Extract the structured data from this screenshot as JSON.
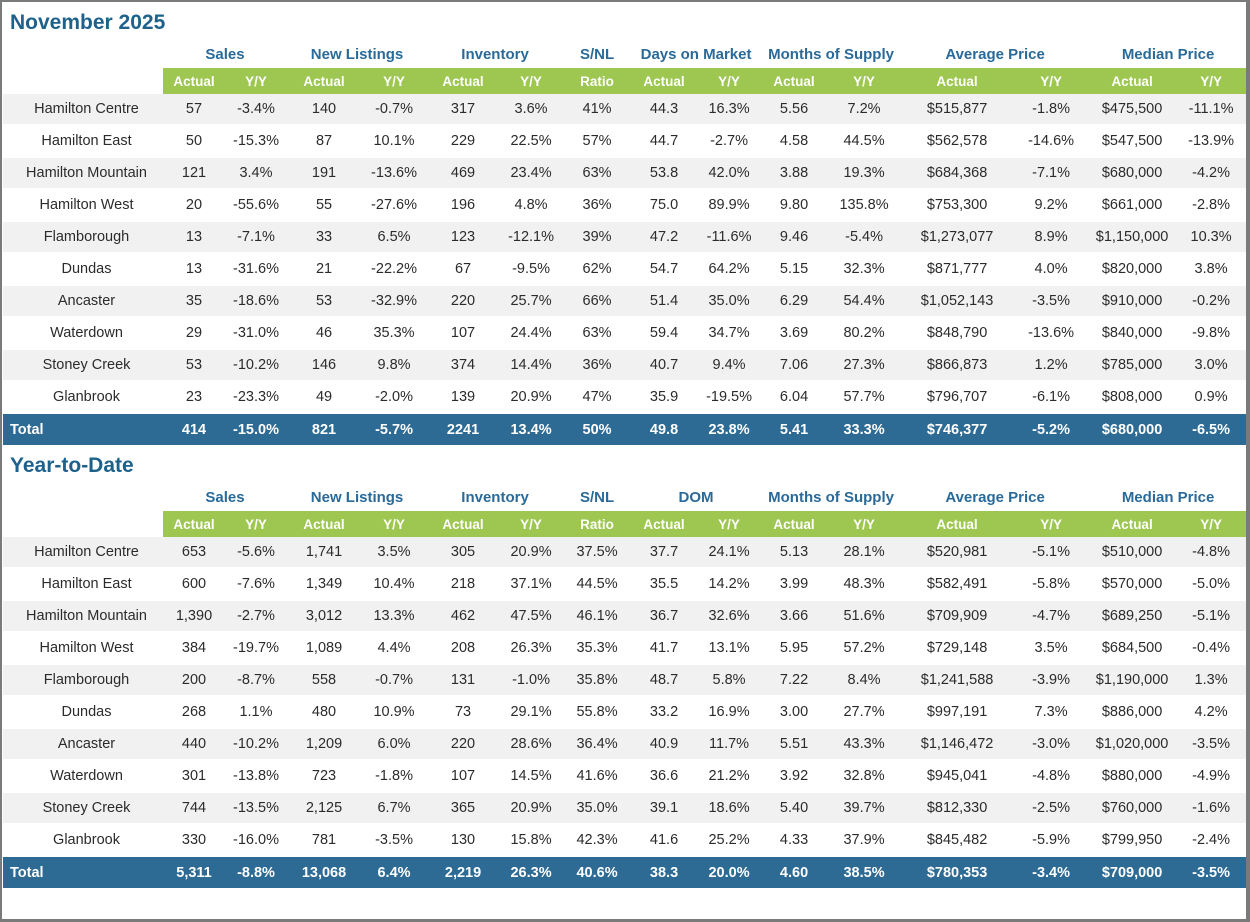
{
  "page": {
    "accent_green": "#9dc750",
    "header_blue": "#2a6a99",
    "title_blue": "#1e628c",
    "total_row_bg": "#2d6b94",
    "stripe_gray": "#f1f1f1"
  },
  "sections": [
    {
      "title": "November 2025",
      "groups": [
        {
          "label": "Sales",
          "span": 2
        },
        {
          "label": "New Listings",
          "span": 2
        },
        {
          "label": "Inventory",
          "span": 2
        },
        {
          "label": "S/NL",
          "span": 1
        },
        {
          "label": "Days on Market",
          "span": 2
        },
        {
          "label": "Months of Supply",
          "span": 2
        },
        {
          "label": "Average Price",
          "span": 2
        },
        {
          "label": "Median Price",
          "span": 2
        }
      ],
      "subheaders": [
        "Actual",
        "Y/Y",
        "Actual",
        "Y/Y",
        "Actual",
        "Y/Y",
        "Ratio",
        "Actual",
        "Y/Y",
        "Actual",
        "Y/Y",
        "Actual",
        "Y/Y",
        "Actual",
        "Y/Y"
      ],
      "rows": [
        {
          "region": "Hamilton Centre",
          "values": [
            "57",
            "-3.4%",
            "140",
            "-0.7%",
            "317",
            "3.6%",
            "41%",
            "44.3",
            "16.3%",
            "5.56",
            "7.2%",
            "$515,877",
            "-1.8%",
            "$475,500",
            "-11.1%"
          ]
        },
        {
          "region": "Hamilton East",
          "values": [
            "50",
            "-15.3%",
            "87",
            "10.1%",
            "229",
            "22.5%",
            "57%",
            "44.7",
            "-2.7%",
            "4.58",
            "44.5%",
            "$562,578",
            "-14.6%",
            "$547,500",
            "-13.9%"
          ]
        },
        {
          "region": "Hamilton Mountain",
          "values": [
            "121",
            "3.4%",
            "191",
            "-13.6%",
            "469",
            "23.4%",
            "63%",
            "53.8",
            "42.0%",
            "3.88",
            "19.3%",
            "$684,368",
            "-7.1%",
            "$680,000",
            "-4.2%"
          ]
        },
        {
          "region": "Hamilton West",
          "values": [
            "20",
            "-55.6%",
            "55",
            "-27.6%",
            "196",
            "4.8%",
            "36%",
            "75.0",
            "89.9%",
            "9.80",
            "135.8%",
            "$753,300",
            "9.2%",
            "$661,000",
            "-2.8%"
          ]
        },
        {
          "region": "Flamborough",
          "values": [
            "13",
            "-7.1%",
            "33",
            "6.5%",
            "123",
            "-12.1%",
            "39%",
            "47.2",
            "-11.6%",
            "9.46",
            "-5.4%",
            "$1,273,077",
            "8.9%",
            "$1,150,000",
            "10.3%"
          ]
        },
        {
          "region": "Dundas",
          "values": [
            "13",
            "-31.6%",
            "21",
            "-22.2%",
            "67",
            "-9.5%",
            "62%",
            "54.7",
            "64.2%",
            "5.15",
            "32.3%",
            "$871,777",
            "4.0%",
            "$820,000",
            "3.8%"
          ]
        },
        {
          "region": "Ancaster",
          "values": [
            "35",
            "-18.6%",
            "53",
            "-32.9%",
            "220",
            "25.7%",
            "66%",
            "51.4",
            "35.0%",
            "6.29",
            "54.4%",
            "$1,052,143",
            "-3.5%",
            "$910,000",
            "-0.2%"
          ]
        },
        {
          "region": "Waterdown",
          "values": [
            "29",
            "-31.0%",
            "46",
            "35.3%",
            "107",
            "24.4%",
            "63%",
            "59.4",
            "34.7%",
            "3.69",
            "80.2%",
            "$848,790",
            "-13.6%",
            "$840,000",
            "-9.8%"
          ]
        },
        {
          "region": "Stoney Creek",
          "values": [
            "53",
            "-10.2%",
            "146",
            "9.8%",
            "374",
            "14.4%",
            "36%",
            "40.7",
            "9.4%",
            "7.06",
            "27.3%",
            "$866,873",
            "1.2%",
            "$785,000",
            "3.0%"
          ]
        },
        {
          "region": "Glanbrook",
          "values": [
            "23",
            "-23.3%",
            "49",
            "-2.0%",
            "139",
            "20.9%",
            "47%",
            "35.9",
            "-19.5%",
            "6.04",
            "57.7%",
            "$796,707",
            "-6.1%",
            "$808,000",
            "0.9%"
          ]
        }
      ],
      "total": {
        "region": "Total",
        "values": [
          "414",
          "-15.0%",
          "821",
          "-5.7%",
          "2241",
          "13.4%",
          "50%",
          "49.8",
          "23.8%",
          "5.41",
          "33.3%",
          "$746,377",
          "-5.2%",
          "$680,000",
          "-6.5%"
        ]
      }
    },
    {
      "title": "Year-to-Date",
      "groups": [
        {
          "label": "Sales",
          "span": 2
        },
        {
          "label": "New Listings",
          "span": 2
        },
        {
          "label": "Inventory",
          "span": 2
        },
        {
          "label": "S/NL",
          "span": 1
        },
        {
          "label": "DOM",
          "span": 2
        },
        {
          "label": "Months of Supply",
          "span": 2
        },
        {
          "label": "Average Price",
          "span": 2
        },
        {
          "label": "Median Price",
          "span": 2
        }
      ],
      "subheaders": [
        "Actual",
        "Y/Y",
        "Actual",
        "Y/Y",
        "Actual",
        "Y/Y",
        "Ratio",
        "Actual",
        "Y/Y",
        "Actual",
        "Y/Y",
        "Actual",
        "Y/Y",
        "Actual",
        "Y/Y"
      ],
      "rows": [
        {
          "region": "Hamilton Centre",
          "values": [
            "653",
            "-5.6%",
            "1,741",
            "3.5%",
            "305",
            "20.9%",
            "37.5%",
            "37.7",
            "24.1%",
            "5.13",
            "28.1%",
            "$520,981",
            "-5.1%",
            "$510,000",
            "-4.8%"
          ]
        },
        {
          "region": "Hamilton East",
          "values": [
            "600",
            "-7.6%",
            "1,349",
            "10.4%",
            "218",
            "37.1%",
            "44.5%",
            "35.5",
            "14.2%",
            "3.99",
            "48.3%",
            "$582,491",
            "-5.8%",
            "$570,000",
            "-5.0%"
          ]
        },
        {
          "region": "Hamilton Mountain",
          "values": [
            "1,390",
            "-2.7%",
            "3,012",
            "13.3%",
            "462",
            "47.5%",
            "46.1%",
            "36.7",
            "32.6%",
            "3.66",
            "51.6%",
            "$709,909",
            "-4.7%",
            "$689,250",
            "-5.1%"
          ]
        },
        {
          "region": "Hamilton West",
          "values": [
            "384",
            "-19.7%",
            "1,089",
            "4.4%",
            "208",
            "26.3%",
            "35.3%",
            "41.7",
            "13.1%",
            "5.95",
            "57.2%",
            "$729,148",
            "3.5%",
            "$684,500",
            "-0.4%"
          ]
        },
        {
          "region": "Flamborough",
          "values": [
            "200",
            "-8.7%",
            "558",
            "-0.7%",
            "131",
            "-1.0%",
            "35.8%",
            "48.7",
            "5.8%",
            "7.22",
            "8.4%",
            "$1,241,588",
            "-3.9%",
            "$1,190,000",
            "1.3%"
          ]
        },
        {
          "region": "Dundas",
          "values": [
            "268",
            "1.1%",
            "480",
            "10.9%",
            "73",
            "29.1%",
            "55.8%",
            "33.2",
            "16.9%",
            "3.00",
            "27.7%",
            "$997,191",
            "7.3%",
            "$886,000",
            "4.2%"
          ]
        },
        {
          "region": "Ancaster",
          "values": [
            "440",
            "-10.2%",
            "1,209",
            "6.0%",
            "220",
            "28.6%",
            "36.4%",
            "40.9",
            "11.7%",
            "5.51",
            "43.3%",
            "$1,146,472",
            "-3.0%",
            "$1,020,000",
            "-3.5%"
          ]
        },
        {
          "region": "Waterdown",
          "values": [
            "301",
            "-13.8%",
            "723",
            "-1.8%",
            "107",
            "14.5%",
            "41.6%",
            "36.6",
            "21.2%",
            "3.92",
            "32.8%",
            "$945,041",
            "-4.8%",
            "$880,000",
            "-4.9%"
          ]
        },
        {
          "region": "Stoney Creek",
          "values": [
            "744",
            "-13.5%",
            "2,125",
            "6.7%",
            "365",
            "20.9%",
            "35.0%",
            "39.1",
            "18.6%",
            "5.40",
            "39.7%",
            "$812,330",
            "-2.5%",
            "$760,000",
            "-1.6%"
          ]
        },
        {
          "region": "Glanbrook",
          "values": [
            "330",
            "-16.0%",
            "781",
            "-3.5%",
            "130",
            "15.8%",
            "42.3%",
            "41.6",
            "25.2%",
            "4.33",
            "37.9%",
            "$845,482",
            "-5.9%",
            "$799,950",
            "-2.4%"
          ]
        }
      ],
      "total": {
        "region": "Total",
        "values": [
          "5,311",
          "-8.8%",
          "13,068",
          "6.4%",
          "2,219",
          "26.3%",
          "40.6%",
          "38.3",
          "20.0%",
          "4.60",
          "38.5%",
          "$780,353",
          "-3.4%",
          "$709,000",
          "-3.5%"
        ]
      }
    }
  ]
}
